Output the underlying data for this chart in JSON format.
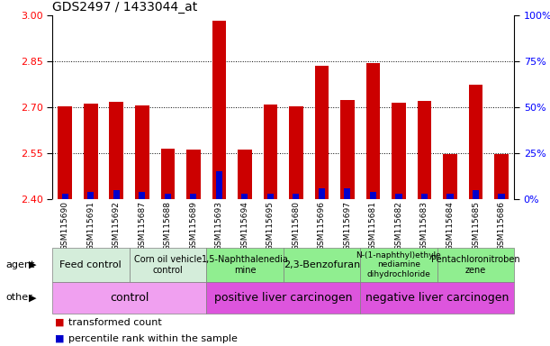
{
  "title": "GDS2497 / 1433044_at",
  "samples": [
    "GSM115690",
    "GSM115691",
    "GSM115692",
    "GSM115687",
    "GSM115688",
    "GSM115689",
    "GSM115693",
    "GSM115694",
    "GSM115695",
    "GSM115680",
    "GSM115696",
    "GSM115697",
    "GSM115681",
    "GSM115682",
    "GSM115683",
    "GSM115684",
    "GSM115685",
    "GSM115686"
  ],
  "red_values": [
    2.702,
    2.712,
    2.718,
    2.706,
    2.565,
    2.562,
    2.983,
    2.563,
    2.71,
    2.703,
    2.836,
    2.723,
    2.845,
    2.716,
    2.72,
    2.548,
    2.775,
    2.548
  ],
  "blue_percentiles": [
    3,
    4,
    5,
    4,
    3,
    3,
    15,
    3,
    3,
    3,
    6,
    6,
    4,
    3,
    3,
    3,
    5,
    3
  ],
  "ymin": 2.4,
  "ymax": 3.0,
  "yticks_left": [
    2.4,
    2.55,
    2.7,
    2.85,
    3.0
  ],
  "yticks_right": [
    0,
    25,
    50,
    75,
    100
  ],
  "agent_groups": [
    {
      "label": "Feed control",
      "start": 0,
      "end": 3,
      "color": "#d4edda",
      "fontsize": 8
    },
    {
      "label": "Corn oil vehicle\ncontrol",
      "start": 3,
      "end": 6,
      "color": "#d4edda",
      "fontsize": 7
    },
    {
      "label": "1,5-Naphthalenedia\nmine",
      "start": 6,
      "end": 9,
      "color": "#90ee90",
      "fontsize": 7
    },
    {
      "label": "2,3-Benzofuran",
      "start": 9,
      "end": 12,
      "color": "#90ee90",
      "fontsize": 8
    },
    {
      "label": "N-(1-naphthyl)ethyle\nnediamine\ndihydrochloride",
      "start": 12,
      "end": 15,
      "color": "#90ee90",
      "fontsize": 6.5
    },
    {
      "label": "Pentachloronitroben\nzene",
      "start": 15,
      "end": 18,
      "color": "#90ee90",
      "fontsize": 7
    }
  ],
  "other_groups": [
    {
      "label": "control",
      "start": 0,
      "end": 6,
      "color": "#f0a0f0"
    },
    {
      "label": "positive liver carcinogen",
      "start": 6,
      "end": 12,
      "color": "#dd55dd"
    },
    {
      "label": "negative liver carcinogen",
      "start": 12,
      "end": 18,
      "color": "#dd55dd"
    }
  ],
  "bar_width": 0.55,
  "red_color": "#cc0000",
  "blue_color": "#0000cc",
  "base": 2.4,
  "grid_yticks": [
    2.55,
    2.7,
    2.85
  ],
  "xtick_bg": "#d8d8d8"
}
